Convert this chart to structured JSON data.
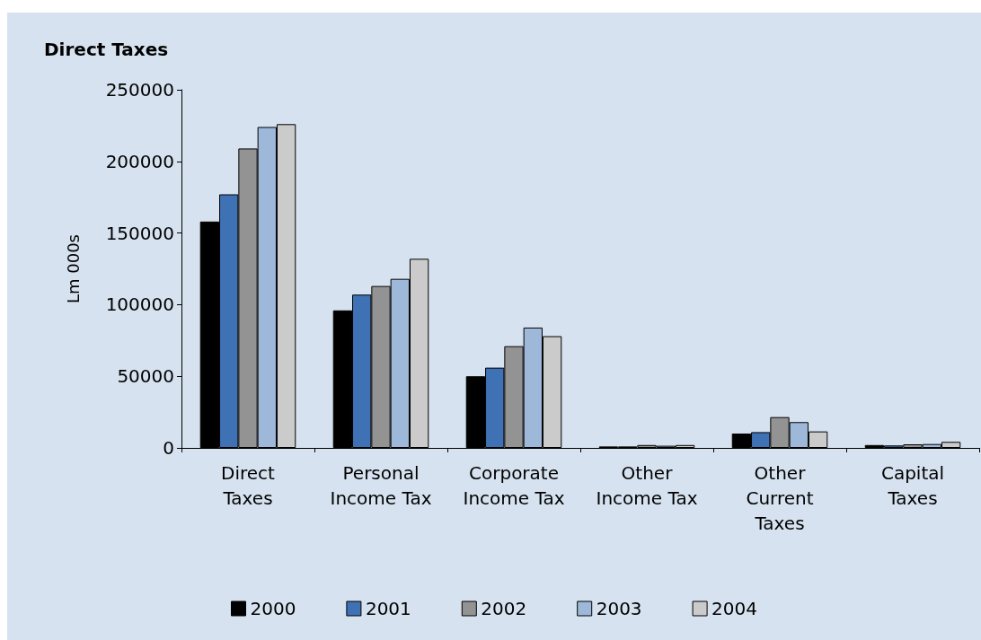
{
  "chart_data": {
    "type": "bar",
    "title": "Direct Taxes",
    "ylabel": "Lm 000s",
    "categories": [
      "Direct\nTaxes",
      "Personal\nIncome Tax",
      "Corporate\nIncome Tax",
      "Other\nIncome Tax",
      "Other\nCurrent\nTaxes",
      "Capital\nTaxes"
    ],
    "series": [
      {
        "name": "2000",
        "color": "#000000",
        "values": [
          158000,
          96000,
          50000,
          1000,
          10000,
          2000
        ]
      },
      {
        "name": "2001",
        "color": "#3f71b5",
        "values": [
          177000,
          107000,
          56000,
          1000,
          11000,
          1700
        ]
      },
      {
        "name": "2002",
        "color": "#939393",
        "values": [
          209000,
          113000,
          71000,
          2000,
          21500,
          2500
        ]
      },
      {
        "name": "2003",
        "color": "#9eb8da",
        "values": [
          224000,
          118000,
          84000,
          1500,
          18000,
          2700
        ]
      },
      {
        "name": "2004",
        "color": "#cbcbcb",
        "values": [
          226000,
          132000,
          78000,
          2000,
          11500,
          4200
        ]
      }
    ],
    "ylim": [
      0,
      250000
    ],
    "yticks": [
      0,
      50000,
      100000,
      150000,
      200000,
      250000
    ],
    "grid": false,
    "legend": "bottom"
  }
}
